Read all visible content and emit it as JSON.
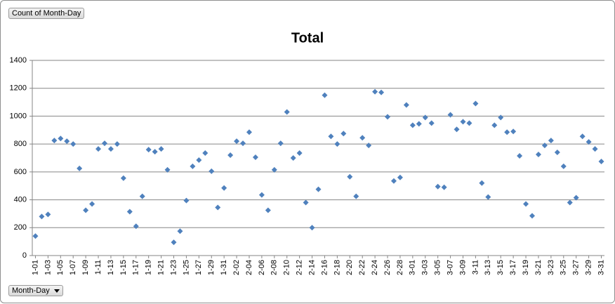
{
  "chart_data": {
    "type": "scatter",
    "title": "Total",
    "value_field": "Count of Month-Day",
    "axis_field": "Month-Day",
    "categories": [
      "1-01",
      null,
      "1-03",
      null,
      "1-05",
      null,
      "1-07",
      null,
      "1-09",
      null,
      "1-11",
      null,
      "1-13",
      null,
      "1-15",
      null,
      "1-17",
      null,
      "1-19",
      null,
      "1-21",
      null,
      "1-23",
      null,
      "1-25",
      null,
      "1-27",
      null,
      "1-29",
      null,
      "1-31",
      null,
      "2-02",
      null,
      "2-04",
      null,
      "2-06",
      null,
      "2-08",
      null,
      "2-10",
      null,
      "2-12",
      null,
      "2-14",
      null,
      "2-16",
      null,
      "2-18",
      null,
      "2-20",
      null,
      "2-22",
      null,
      "2-24",
      null,
      "2-26",
      null,
      "2-28",
      null,
      "3-01",
      null,
      "3-03",
      null,
      "3-05",
      null,
      "3-07",
      null,
      "3-09",
      null,
      "3-11",
      null,
      "3-13",
      null,
      "3-15",
      null,
      "3-17",
      null,
      "3-19",
      null,
      "3-21",
      null,
      "3-23",
      null,
      "3-25",
      null,
      "3-27",
      null,
      "3-29",
      null,
      "3-31"
    ],
    "series": [
      {
        "name": "Total",
        "color": "#4f81bd",
        "values": [
          140,
          280,
          295,
          825,
          840,
          820,
          800,
          625,
          325,
          370,
          765,
          805,
          765,
          800,
          555,
          315,
          210,
          425,
          760,
          745,
          765,
          615,
          95,
          175,
          395,
          640,
          685,
          735,
          605,
          345,
          485,
          720,
          820,
          805,
          885,
          705,
          435,
          325,
          615,
          805,
          1030,
          700,
          735,
          380,
          200,
          475,
          1150,
          855,
          800,
          875,
          565,
          425,
          845,
          790,
          1175,
          1170,
          995,
          535,
          560,
          1080,
          935,
          945,
          990,
          950,
          495,
          490,
          1010,
          905,
          960,
          950,
          1090,
          520,
          420,
          935,
          990,
          885,
          890,
          715,
          370,
          285,
          725,
          790,
          825,
          740,
          640,
          380,
          415,
          855,
          815,
          765,
          675
        ]
      }
    ],
    "ylim": [
      0,
      1400
    ],
    "yticks": [
      0,
      200,
      400,
      600,
      800,
      1000,
      1200,
      1400
    ],
    "grid": true
  }
}
